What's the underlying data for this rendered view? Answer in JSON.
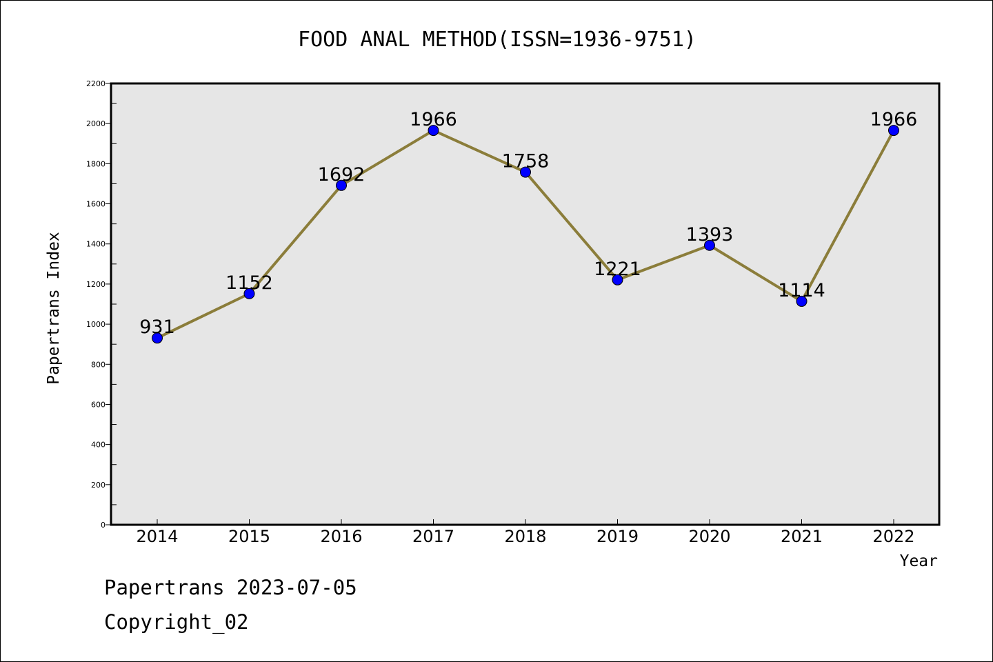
{
  "chart_data": {
    "type": "line",
    "title": "FOOD ANAL METHOD(ISSN=1936-9751)",
    "xlabel": "Year",
    "ylabel": "Papertrans Index",
    "categories": [
      "2014",
      "2015",
      "2016",
      "2017",
      "2018",
      "2019",
      "2020",
      "2021",
      "2022"
    ],
    "series": [
      {
        "values": [
          931,
          1152,
          1692,
          1966,
          1758,
          1221,
          1393,
          1114,
          1966
        ]
      }
    ],
    "ylim": [
      0,
      2200
    ],
    "yticks": [
      0,
      200,
      400,
      600,
      800,
      1000,
      1200,
      1400,
      1600,
      1800,
      2000,
      2200
    ],
    "grid": false,
    "legend": "none",
    "colors": {
      "plot_bg": "#e6e6e6",
      "line": "#8b7d3a",
      "marker": "#0000ff"
    }
  },
  "footer": {
    "line1": "Papertrans 2023-07-05",
    "line2": "Copyright_02"
  }
}
